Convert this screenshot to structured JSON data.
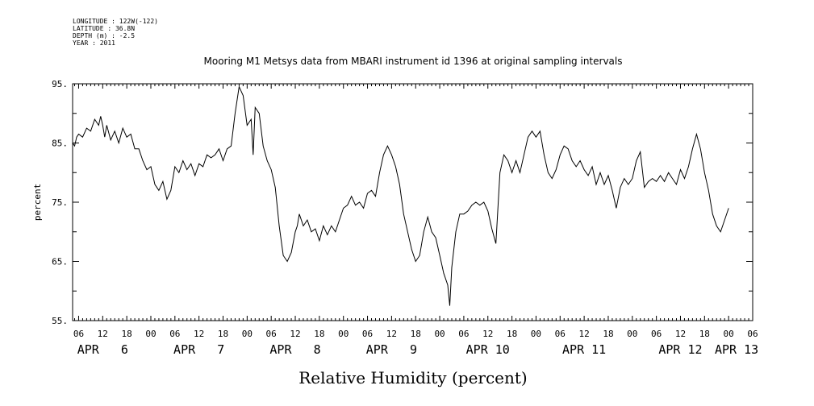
{
  "header": {
    "longitude": "LONGITUDE : 122W(-122)",
    "latitude": "LATITUDE : 36.8N",
    "depth": "DEPTH (m) : -2.5",
    "year": "YEAR : 2011"
  },
  "chart_data": {
    "type": "line",
    "title": "Mooring M1 Metsys data from MBARI instrument id 1396 at original sampling intervals",
    "xlabel": "Relative Humidity (percent)",
    "ylabel": "percent",
    "ylim": [
      55,
      95
    ],
    "y_ticks": [
      "95.",
      "85.",
      "75.",
      "65.",
      "55."
    ],
    "x_unit": "hours since APR 6 00",
    "xlim": [
      4.5,
      174
    ],
    "hour_ticks": [
      {
        "h": 6,
        "label": "06"
      },
      {
        "h": 12,
        "label": "12"
      },
      {
        "h": 18,
        "label": "18"
      },
      {
        "h": 24,
        "label": "00"
      },
      {
        "h": 30,
        "label": "06"
      },
      {
        "h": 36,
        "label": "12"
      },
      {
        "h": 42,
        "label": "18"
      },
      {
        "h": 48,
        "label": "00"
      },
      {
        "h": 54,
        "label": "06"
      },
      {
        "h": 60,
        "label": "12"
      },
      {
        "h": 66,
        "label": "18"
      },
      {
        "h": 72,
        "label": "00"
      },
      {
        "h": 78,
        "label": "06"
      },
      {
        "h": 84,
        "label": "12"
      },
      {
        "h": 90,
        "label": "18"
      },
      {
        "h": 96,
        "label": "00"
      },
      {
        "h": 102,
        "label": "06"
      },
      {
        "h": 108,
        "label": "12"
      },
      {
        "h": 114,
        "label": "18"
      },
      {
        "h": 120,
        "label": "00"
      },
      {
        "h": 126,
        "label": "06"
      },
      {
        "h": 132,
        "label": "12"
      },
      {
        "h": 138,
        "label": "18"
      },
      {
        "h": 144,
        "label": "00"
      },
      {
        "h": 150,
        "label": "06"
      },
      {
        "h": 156,
        "label": "12"
      },
      {
        "h": 162,
        "label": "18"
      },
      {
        "h": 168,
        "label": "00"
      },
      {
        "h": 174,
        "label": "06"
      }
    ],
    "day_labels": [
      {
        "h": 12,
        "label": "APR   6"
      },
      {
        "h": 36,
        "label": "APR   7"
      },
      {
        "h": 60,
        "label": "APR   8"
      },
      {
        "h": 84,
        "label": "APR   9"
      },
      {
        "h": 108,
        "label": "APR 10"
      },
      {
        "h": 132,
        "label": "APR 11"
      },
      {
        "h": 156,
        "label": "APR 12"
      },
      {
        "h": 170,
        "label": "APR 13"
      }
    ],
    "series": [
      {
        "values": [
          [
            4.5,
            85
          ],
          [
            5,
            84.5
          ],
          [
            5.5,
            86
          ],
          [
            6,
            86.5
          ],
          [
            7,
            86
          ],
          [
            8,
            87.5
          ],
          [
            9,
            87
          ],
          [
            10,
            89
          ],
          [
            11,
            88
          ],
          [
            11.5,
            89.5
          ],
          [
            12,
            88
          ],
          [
            12.5,
            86
          ],
          [
            13,
            88
          ],
          [
            14,
            85.5
          ],
          [
            15,
            87
          ],
          [
            16,
            85
          ],
          [
            17,
            87.5
          ],
          [
            18,
            86
          ],
          [
            19,
            86.5
          ],
          [
            20,
            84
          ],
          [
            21,
            84
          ],
          [
            22,
            82
          ],
          [
            23,
            80.5
          ],
          [
            24,
            81
          ],
          [
            25,
            78
          ],
          [
            26,
            77
          ],
          [
            27,
            78.5
          ],
          [
            28,
            75.5
          ],
          [
            29,
            77
          ],
          [
            30,
            81
          ],
          [
            31,
            80
          ],
          [
            32,
            82
          ],
          [
            33,
            80.5
          ],
          [
            34,
            81.5
          ],
          [
            35,
            79.5
          ],
          [
            36,
            81.5
          ],
          [
            37,
            81
          ],
          [
            38,
            83
          ],
          [
            39,
            82.5
          ],
          [
            40,
            83
          ],
          [
            41,
            84
          ],
          [
            42,
            82
          ],
          [
            43,
            84
          ],
          [
            44,
            84.5
          ],
          [
            45,
            90
          ],
          [
            46,
            94.5
          ],
          [
            47,
            93
          ],
          [
            48,
            88
          ],
          [
            49,
            89
          ],
          [
            49.5,
            83
          ],
          [
            50,
            91
          ],
          [
            51,
            90
          ],
          [
            52,
            84.5
          ],
          [
            53,
            82
          ],
          [
            54,
            80.5
          ],
          [
            55,
            77.5
          ],
          [
            56,
            71
          ],
          [
            57,
            66
          ],
          [
            58,
            65
          ],
          [
            59,
            66.5
          ],
          [
            60,
            70
          ],
          [
            60.5,
            71
          ],
          [
            61,
            73
          ],
          [
            62,
            71
          ],
          [
            63,
            72
          ],
          [
            64,
            70
          ],
          [
            65,
            70.5
          ],
          [
            66,
            68.5
          ],
          [
            67,
            71
          ],
          [
            68,
            69.5
          ],
          [
            69,
            71
          ],
          [
            70,
            70
          ],
          [
            71,
            72
          ],
          [
            72,
            74
          ],
          [
            73,
            74.5
          ],
          [
            74,
            76
          ],
          [
            75,
            74.5
          ],
          [
            76,
            75
          ],
          [
            77,
            74
          ],
          [
            78,
            76.5
          ],
          [
            79,
            77
          ],
          [
            80,
            76
          ],
          [
            81,
            80
          ],
          [
            82,
            83
          ],
          [
            83,
            84.5
          ],
          [
            84,
            83
          ],
          [
            85,
            81
          ],
          [
            86,
            78
          ],
          [
            87,
            73
          ],
          [
            88,
            70
          ],
          [
            89,
            67
          ],
          [
            90,
            65
          ],
          [
            91,
            66
          ],
          [
            92,
            70
          ],
          [
            93,
            72.5
          ],
          [
            94,
            70
          ],
          [
            95,
            69
          ],
          [
            96,
            66
          ],
          [
            97,
            63
          ],
          [
            98,
            61
          ],
          [
            98.5,
            57.5
          ],
          [
            99,
            64
          ],
          [
            100,
            70
          ],
          [
            101,
            73
          ],
          [
            102,
            73
          ],
          [
            103,
            73.5
          ],
          [
            104,
            74.5
          ],
          [
            105,
            75
          ],
          [
            106,
            74.5
          ],
          [
            107,
            75
          ],
          [
            108,
            73.5
          ],
          [
            109,
            70.5
          ],
          [
            110,
            68
          ],
          [
            111,
            80
          ],
          [
            112,
            83
          ],
          [
            113,
            82
          ],
          [
            114,
            80
          ],
          [
            115,
            82
          ],
          [
            116,
            80
          ],
          [
            117,
            83
          ],
          [
            118,
            86
          ],
          [
            119,
            87
          ],
          [
            120,
            86
          ],
          [
            121,
            87
          ],
          [
            122,
            83
          ],
          [
            123,
            80
          ],
          [
            124,
            79
          ],
          [
            125,
            80.5
          ],
          [
            126,
            83
          ],
          [
            127,
            84.5
          ],
          [
            128,
            84
          ],
          [
            129,
            82
          ],
          [
            130,
            81
          ],
          [
            131,
            82
          ],
          [
            132,
            80.5
          ],
          [
            133,
            79.5
          ],
          [
            134,
            81
          ],
          [
            135,
            78
          ],
          [
            136,
            80
          ],
          [
            137,
            78
          ],
          [
            138,
            79.5
          ],
          [
            139,
            77
          ],
          [
            140,
            74
          ],
          [
            141,
            77.5
          ],
          [
            142,
            79
          ],
          [
            143,
            78
          ],
          [
            144,
            79
          ],
          [
            145,
            82
          ],
          [
            146,
            83.5
          ],
          [
            147,
            77.5
          ],
          [
            148,
            78.5
          ],
          [
            149,
            79
          ],
          [
            150,
            78.5
          ],
          [
            151,
            79.5
          ],
          [
            152,
            78.5
          ],
          [
            153,
            80
          ],
          [
            154,
            79
          ],
          [
            155,
            78
          ],
          [
            156,
            80.5
          ],
          [
            157,
            79
          ],
          [
            158,
            81
          ],
          [
            159,
            84
          ],
          [
            160,
            86.5
          ],
          [
            161,
            84
          ],
          [
            162,
            80
          ],
          [
            163,
            77
          ],
          [
            164,
            73
          ],
          [
            165,
            71
          ],
          [
            166,
            70
          ],
          [
            167,
            72
          ],
          [
            168,
            74
          ]
        ]
      }
    ]
  }
}
